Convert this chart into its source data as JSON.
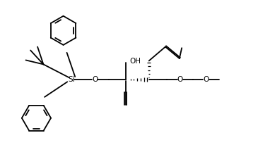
{
  "bg_color": "#ffffff",
  "line_color": "#000000",
  "line_width": 1.3,
  "font_size": 7.5,
  "fig_width": 3.65,
  "fig_height": 2.16,
  "dpi": 100,
  "xlim": [
    0,
    11
  ],
  "ylim": [
    0,
    6.5
  ]
}
